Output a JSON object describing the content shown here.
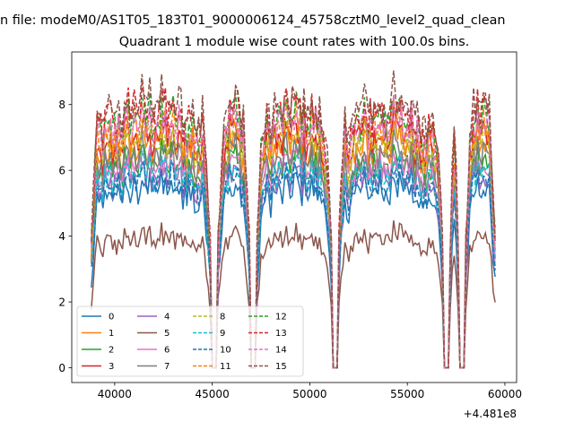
{
  "suptitle": "n file: modeM0/AS1T05_183T01_9000006124_45758cztM0_level2_quad_clean",
  "chart_data": {
    "type": "line",
    "title": "Quadrant 1 module wise count rates with 100.0s bins.",
    "xlabel": "",
    "ylabel": "",
    "x_offset_label": "+4.481e8",
    "xlim": [
      37800,
      60600
    ],
    "ylim": [
      -0.45,
      9.6
    ],
    "xticks": [
      40000,
      45000,
      50000,
      55000,
      60000
    ],
    "xtick_labels": [
      "40000",
      "45000",
      "50000",
      "55000",
      "60000"
    ],
    "yticks": [
      0,
      2,
      4,
      6,
      8
    ],
    "ytick_labels": [
      "0",
      "2",
      "4",
      "6",
      "8"
    ],
    "grid": false,
    "legend_position": "lower-left",
    "segments": [
      {
        "start": 38800,
        "end": 44900
      },
      {
        "start": 45300,
        "end": 46900
      },
      {
        "start": 47300,
        "end": 51100
      },
      {
        "start": 51500,
        "end": 56800
      },
      {
        "start": 57200,
        "end": 57600
      },
      {
        "start": 58000,
        "end": 59500
      }
    ],
    "bin_width_s": 100,
    "series": [
      {
        "name": "0",
        "color": "#1f77b4",
        "dash": "solid",
        "mean": 5.2
      },
      {
        "name": "1",
        "color": "#ff7f0e",
        "dash": "solid",
        "mean": 6.5
      },
      {
        "name": "2",
        "color": "#2ca02c",
        "dash": "solid",
        "mean": 6.0
      },
      {
        "name": "3",
        "color": "#d62728",
        "dash": "solid",
        "mean": 6.8
      },
      {
        "name": "4",
        "color": "#9467bd",
        "dash": "solid",
        "mean": 5.6
      },
      {
        "name": "5",
        "color": "#8c564b",
        "dash": "solid",
        "mean": 3.8
      },
      {
        "name": "6",
        "color": "#e377c2",
        "dash": "solid",
        "mean": 5.9
      },
      {
        "name": "7",
        "color": "#7f7f7f",
        "dash": "solid",
        "mean": 6.2
      },
      {
        "name": "8",
        "color": "#bcbd22",
        "dash": "dashed",
        "mean": 6.7
      },
      {
        "name": "9",
        "color": "#17becf",
        "dash": "dashed",
        "mean": 5.7
      },
      {
        "name": "10",
        "color": "#1f77b4",
        "dash": "dashed",
        "mean": 5.5
      },
      {
        "name": "11",
        "color": "#ff7f0e",
        "dash": "dashed",
        "mean": 7.0
      },
      {
        "name": "12",
        "color": "#2ca02c",
        "dash": "dashed",
        "mean": 7.3
      },
      {
        "name": "13",
        "color": "#d62728",
        "dash": "dashed",
        "mean": 7.5
      },
      {
        "name": "14",
        "color": "#e377c2",
        "dash": "dashed",
        "mean": 7.1
      },
      {
        "name": "15",
        "color": "#8c564b",
        "dash": "dashed",
        "mean": 7.7
      }
    ]
  }
}
